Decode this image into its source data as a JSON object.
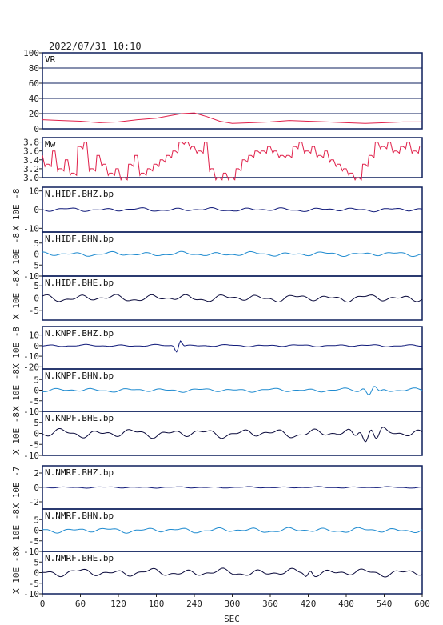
{
  "figure": {
    "title": "2022/07/31  10:10",
    "xlabel": "SEC",
    "xticks": [
      "0",
      "60",
      "120",
      "180",
      "240",
      "300",
      "360",
      "420",
      "480",
      "540",
      "600"
    ],
    "xlim": [
      0,
      600
    ],
    "colors": {
      "frame": "#0d1f5c",
      "vr": "#e0204a",
      "mw": "#e0204a",
      "bhz": "#101a7a",
      "bhn": "#1f8bd0",
      "bhe": "#0a0a3c"
    }
  },
  "chart_data": [
    {
      "type": "line",
      "panel_id": "vr",
      "label": "VR",
      "ylim": [
        0,
        100
      ],
      "yticks": [
        "0",
        "20",
        "40",
        "60",
        "80",
        "100"
      ],
      "grid": true,
      "unit": "",
      "x": [
        0,
        30,
        60,
        90,
        120,
        150,
        180,
        200,
        220,
        240,
        260,
        280,
        300,
        330,
        360,
        390,
        420,
        450,
        480,
        510,
        540,
        570,
        600
      ],
      "values": [
        12,
        11,
        10,
        8,
        9,
        12,
        14,
        17,
        20,
        21,
        16,
        10,
        7,
        8,
        9,
        11,
        10,
        9,
        8,
        7,
        8,
        9,
        9
      ]
    },
    {
      "type": "line",
      "panel_id": "mw",
      "label": "Mw",
      "ylim": [
        3.0,
        3.9
      ],
      "yticks": [
        "3.0",
        "3.2",
        "3.4",
        "3.6",
        "3.8"
      ],
      "grid": false,
      "unit": "",
      "x": [
        0,
        10,
        20,
        30,
        40,
        50,
        60,
        70,
        80,
        90,
        100,
        110,
        120,
        130,
        140,
        150,
        160,
        170,
        180,
        190,
        200,
        210,
        220,
        230,
        240,
        250,
        260,
        270,
        280,
        290,
        300,
        310,
        320,
        330,
        340,
        350,
        360,
        370,
        380,
        390,
        400,
        410,
        420,
        430,
        440,
        450,
        460,
        470,
        480,
        490,
        500,
        510,
        520,
        530,
        540,
        550,
        560,
        570,
        580,
        590,
        600
      ],
      "values": [
        3.5,
        3.3,
        3.6,
        3.2,
        3.4,
        3.1,
        3.7,
        3.8,
        3.2,
        3.5,
        3.3,
        3.1,
        3.2,
        3.0,
        3.3,
        3.5,
        3.1,
        3.2,
        3.3,
        3.4,
        3.5,
        3.6,
        3.8,
        3.8,
        3.7,
        3.6,
        3.8,
        3.2,
        3.0,
        3.1,
        3.0,
        3.2,
        3.4,
        3.5,
        3.6,
        3.6,
        3.7,
        3.6,
        3.5,
        3.5,
        3.7,
        3.8,
        3.6,
        3.7,
        3.5,
        3.6,
        3.4,
        3.3,
        3.2,
        3.1,
        3.0,
        3.3,
        3.5,
        3.8,
        3.7,
        3.8,
        3.6,
        3.7,
        3.8,
        3.6,
        3.7
      ]
    },
    {
      "type": "line",
      "panel_id": "hidf-bhz",
      "label": "N.HIDF.BHZ.bp",
      "ylim": [
        -12,
        12
      ],
      "yticks": [
        "-10",
        "0",
        "10"
      ],
      "unit": "X 10E -8",
      "color_key": "bhz",
      "amp": 1.0,
      "seed": 1,
      "events": []
    },
    {
      "type": "line",
      "panel_id": "hidf-bhn",
      "label": "N.HIDF.BHN.bp",
      "ylim": [
        -10,
        10
      ],
      "yticks": [
        "-10",
        "-5",
        "0",
        "5"
      ],
      "unit": "X 10E -8",
      "color_key": "bhn",
      "amp": 1.0,
      "seed": 2,
      "events": []
    },
    {
      "type": "line",
      "panel_id": "hidf-bhe",
      "label": "N.HIDF.BHE.bp",
      "ylim": [
        -9,
        9
      ],
      "yticks": [
        "-5",
        "0",
        "5"
      ],
      "unit": "X 10E -8",
      "color_key": "bhe",
      "amp": 1.5,
      "seed": 3,
      "events": []
    },
    {
      "type": "line",
      "panel_id": "knpf-bhz",
      "label": "N.KNPF.BHZ.bp",
      "ylim": [
        -22,
        18
      ],
      "yticks": [
        "-20",
        "-10",
        "0",
        "10"
      ],
      "unit": "X 10E -8",
      "color_key": "bhz",
      "amp": 1.0,
      "seed": 4,
      "events": [
        {
          "t": 215,
          "a": 8,
          "w": 6
        }
      ]
    },
    {
      "type": "line",
      "panel_id": "knpf-bhn",
      "label": "N.KNPF.BHN.bp",
      "ylim": [
        -10,
        10
      ],
      "yticks": [
        "-10",
        "-5",
        "0",
        "5"
      ],
      "unit": "X 10E -8",
      "color_key": "bhn",
      "amp": 0.9,
      "seed": 5,
      "events": [
        {
          "t": 520,
          "a": 2,
          "w": 15
        }
      ]
    },
    {
      "type": "line",
      "panel_id": "knpf-bhe",
      "label": "N.KNPF.BHE.bp",
      "ylim": [
        -10,
        10
      ],
      "yticks": [
        "-10",
        "-5",
        "0",
        "5"
      ],
      "unit": "X 10E -8",
      "color_key": "bhe",
      "amp": 2.0,
      "seed": 6,
      "events": [
        {
          "t": 515,
          "a": 3,
          "w": 20
        }
      ]
    },
    {
      "type": "line",
      "panel_id": "nmrf-bhz",
      "label": "N.NMRF.BHZ.bp",
      "ylim": [
        -3,
        3
      ],
      "yticks": [
        "-2",
        "0",
        "2"
      ],
      "unit": "X 10E -7",
      "color_key": "bhz",
      "amp": 0.1,
      "seed": 7,
      "events": []
    },
    {
      "type": "line",
      "panel_id": "nmrf-bhn",
      "label": "N.NMRF.BHN.bp",
      "ylim": [
        -10,
        10
      ],
      "yticks": [
        "-10",
        "-5",
        "0",
        "5"
      ],
      "unit": "X 10E -8",
      "color_key": "bhn",
      "amp": 1.2,
      "seed": 8,
      "events": []
    },
    {
      "type": "line",
      "panel_id": "nmrf-bhe",
      "label": "N.NMRF.BHE.bp",
      "ylim": [
        -10,
        10
      ],
      "yticks": [
        "-10",
        "-5",
        "0",
        "5"
      ],
      "unit": "X 10E -8",
      "color_key": "bhe",
      "amp": 1.8,
      "seed": 9,
      "events": [
        {
          "t": 420,
          "a": 2,
          "w": 8
        }
      ]
    }
  ]
}
